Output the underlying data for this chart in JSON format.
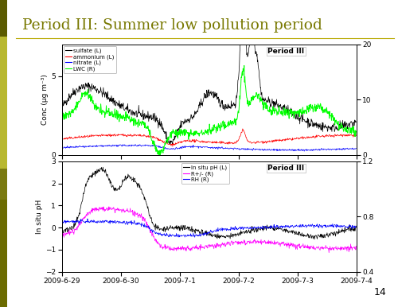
{
  "title": "Period III: Summer low pollution period",
  "title_color": "#787800",
  "background_color": "#ffffff",
  "left_bar_color": "#6b6b00",
  "left_bar_light": "#b8b840",
  "page_number": "14",
  "top_panel": {
    "ylabel": "Conc (μg m⁻³)",
    "ylim_left": [
      0,
      7
    ],
    "ylim_right": [
      0,
      20
    ],
    "yticks_left": [
      0,
      5
    ],
    "yticks_right": [
      0,
      10,
      20
    ]
  },
  "bottom_panel": {
    "ylabel": "In situ pH",
    "ylim_left": [
      -2,
      3
    ],
    "ylim_right": [
      0.4,
      1.2
    ],
    "yticks_left": [
      -2,
      -1,
      0,
      1,
      2,
      3
    ],
    "yticks_right": [
      0.4,
      0.8,
      1.2
    ]
  },
  "xticklabels": [
    "2009-6-29",
    "2009-6-30",
    "2009-7-1",
    "2009-7-2",
    "2009-7-3",
    "2009-7-4"
  ],
  "n_points": 800
}
